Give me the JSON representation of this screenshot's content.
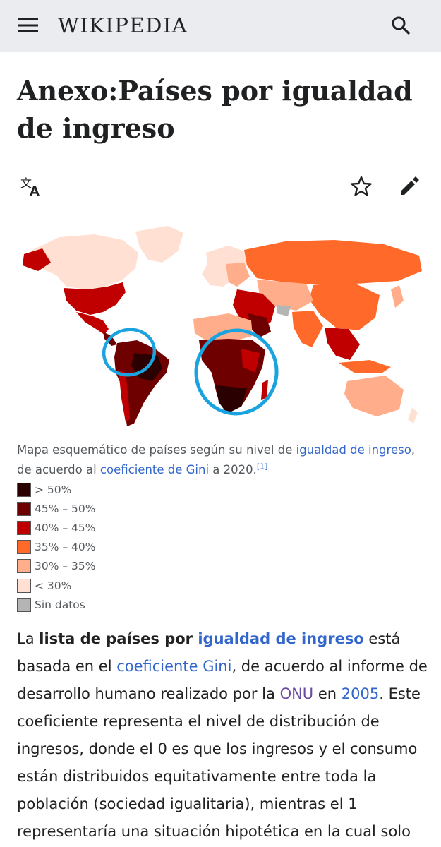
{
  "header": {
    "wordmark": "WIKIPEDIA",
    "menu_icon": "hamburger-menu-icon",
    "search_icon": "search-icon"
  },
  "page": {
    "title": "Anexo:Países por igualdad de ingreso",
    "actions": {
      "language_icon": "translate-icon",
      "watch_icon": "star-icon",
      "edit_icon": "pencil-icon"
    }
  },
  "figure": {
    "caption_pre": "Mapa esquemático de países según su nivel de ",
    "caption_link1": "igualdad de ingreso",
    "caption_mid": ", de acuerdo al ",
    "caption_link2": "coeficiente de Gini",
    "caption_post": " a 2020.",
    "caption_ref": "[1]",
    "legend": [
      {
        "label": "> 50%",
        "color": "#2b0000"
      },
      {
        "label": "45% – 50%",
        "color": "#6e0000"
      },
      {
        "label": "40% – 45%",
        "color": "#c00000"
      },
      {
        "label": "35% – 40%",
        "color": "#ff6a2b"
      },
      {
        "label": "30% – 35%",
        "color": "#ffad8a"
      },
      {
        "label": "< 30%",
        "color": "#ffe0d2"
      },
      {
        "label": "Sin datos",
        "color": "#b5b5b5"
      }
    ]
  },
  "body": {
    "t1": "La ",
    "t2": "lista de países por ",
    "link1": "igualdad de ingreso",
    "t3": " está basada en el ",
    "link2": "coeficiente Gini",
    "t4": ", de acuerdo al informe de desarrollo humano realizado por la ",
    "link3": "ONU",
    "t5": " en ",
    "link4": "2005",
    "t6": ". Este coeficiente representa el nivel de distribución de ingresos, donde el 0 es que los ingresos y el consumo están distribuidos equitativamente entre toda la población (sociedad igualitaria), mientras el 1 representaría una situación hipotética en la cual solo"
  },
  "colors": {
    "link": "#3366cc",
    "visited_link": "#6b4ba1",
    "highlight_circle": "#1ba3e0"
  }
}
